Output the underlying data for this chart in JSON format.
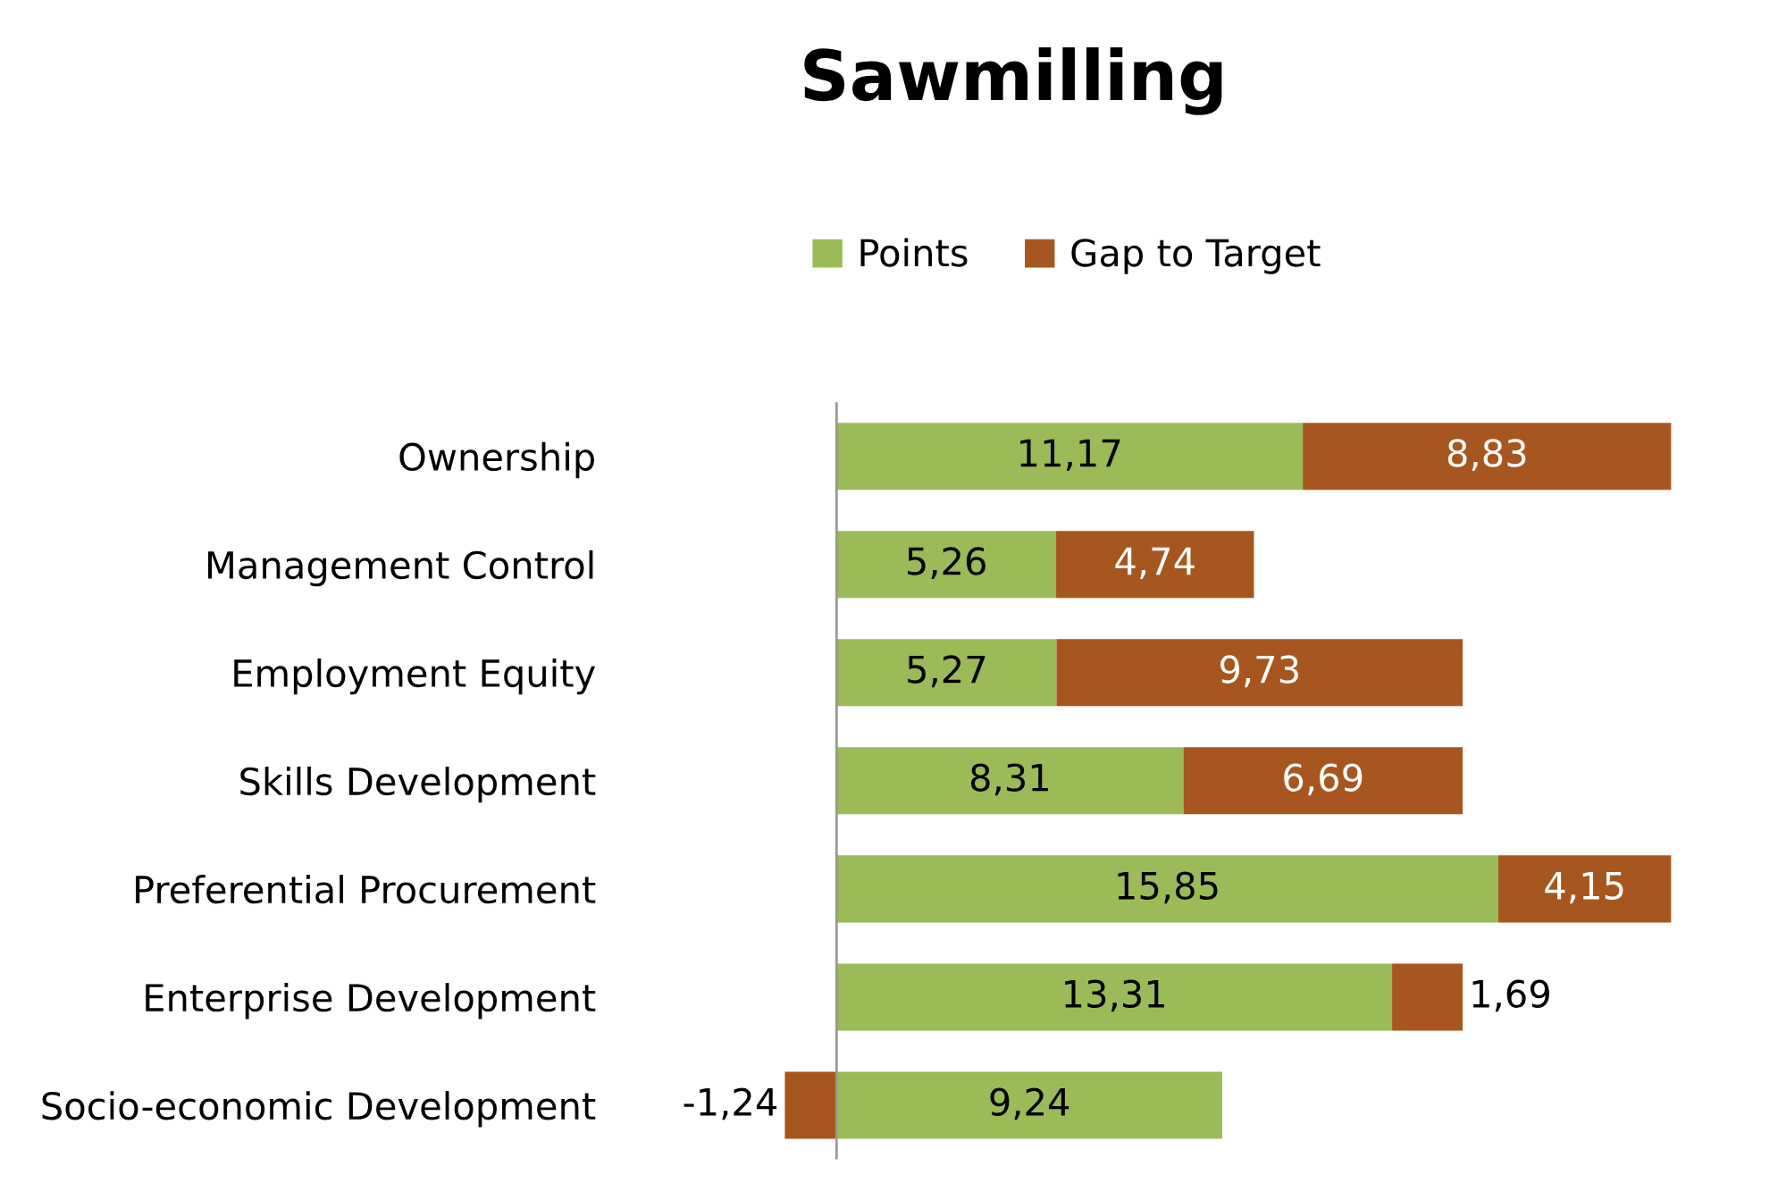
{
  "chart_data": {
    "type": "bar",
    "orientation": "horizontal",
    "stacked": true,
    "title": "Sawmilling",
    "categories": [
      "Ownership",
      "Management Control",
      "Employment Equity",
      "Skills Development",
      "Preferential Procurement",
      "Enterprise Development",
      "Socio-economic Development"
    ],
    "series": [
      {
        "name": "Points",
        "color": "#9bbb59",
        "values": [
          11.17,
          5.26,
          5.27,
          8.31,
          15.85,
          13.31,
          9.24
        ],
        "value_labels": [
          "11,17",
          "5,26",
          "5,27",
          "8,31",
          "15,85",
          "13,31",
          "9,24"
        ]
      },
      {
        "name": "Gap to Target",
        "color": "#a8561f",
        "values": [
          8.83,
          4.74,
          9.73,
          6.69,
          4.15,
          1.69,
          -1.24
        ],
        "value_labels": [
          "8,83",
          "4,74",
          "9,73",
          "6,69",
          "4,15",
          "1,69",
          "-1,24"
        ]
      }
    ],
    "xlim": [
      -1.3,
      20
    ],
    "tick_labels": "y",
    "grid": false,
    "legend": "top"
  }
}
